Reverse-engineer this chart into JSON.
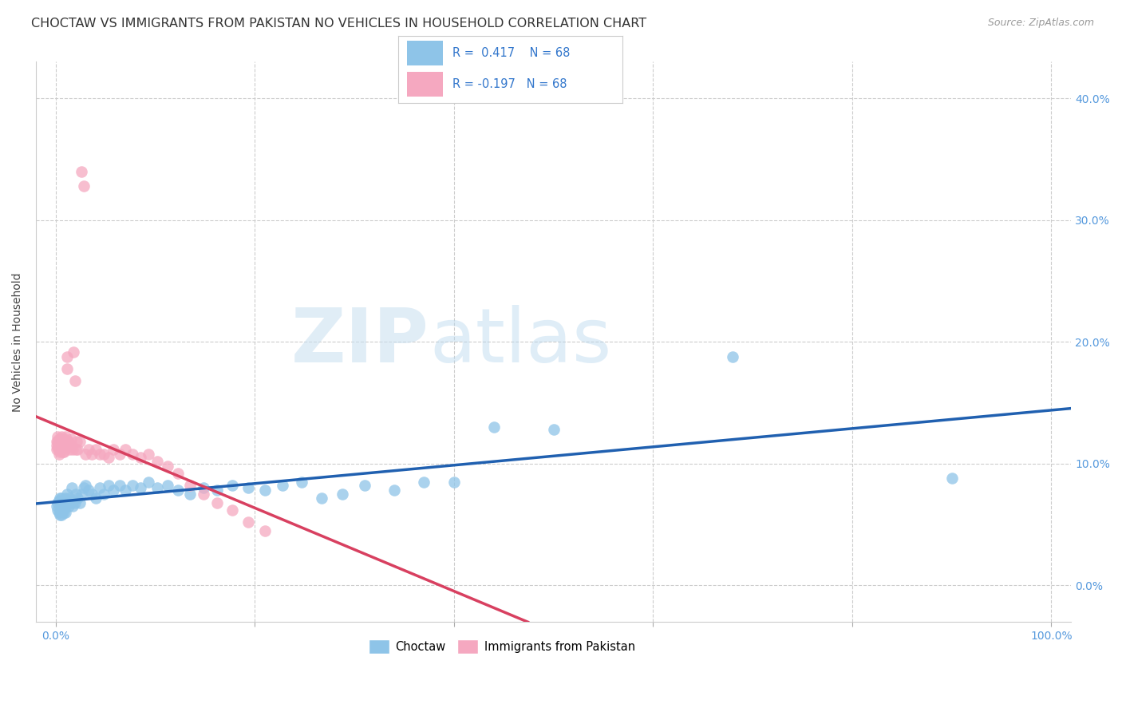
{
  "title": "CHOCTAW VS IMMIGRANTS FROM PAKISTAN NO VEHICLES IN HOUSEHOLD CORRELATION CHART",
  "source": "Source: ZipAtlas.com",
  "ylabel": "No Vehicles in Household",
  "ytick_values": [
    0.0,
    0.1,
    0.2,
    0.3,
    0.4
  ],
  "xtick_positions": [
    0.0,
    0.2,
    0.4,
    0.6,
    0.8,
    1.0
  ],
  "xmin": -0.02,
  "xmax": 1.02,
  "ymin": -0.03,
  "ymax": 0.43,
  "R_choctaw": 0.417,
  "N_choctaw": 68,
  "R_pakistan": -0.197,
  "N_pakistan": 68,
  "choctaw_color": "#8ec4e8",
  "pakistan_color": "#f5a8c0",
  "choctaw_line_color": "#2060b0",
  "pakistan_line_color": "#d84060",
  "legend_choctaw": "Choctaw",
  "legend_pakistan": "Immigrants from Pakistan",
  "watermark_zip": "ZIP",
  "watermark_atlas": "atlas",
  "title_fontsize": 11.5,
  "axis_label_fontsize": 10,
  "tick_fontsize": 10,
  "choctaw_x": [
    0.001,
    0.002,
    0.002,
    0.003,
    0.003,
    0.004,
    0.004,
    0.005,
    0.005,
    0.006,
    0.006,
    0.007,
    0.007,
    0.008,
    0.008,
    0.009,
    0.009,
    0.01,
    0.01,
    0.011,
    0.011,
    0.012,
    0.013,
    0.014,
    0.015,
    0.016,
    0.017,
    0.018,
    0.019,
    0.02,
    0.022,
    0.024,
    0.026,
    0.028,
    0.03,
    0.033,
    0.036,
    0.04,
    0.044,
    0.048,
    0.053,
    0.058,
    0.064,
    0.07,
    0.077,
    0.085,
    0.093,
    0.102,
    0.112,
    0.123,
    0.135,
    0.148,
    0.162,
    0.177,
    0.193,
    0.21,
    0.228,
    0.247,
    0.267,
    0.288,
    0.31,
    0.34,
    0.37,
    0.4,
    0.44,
    0.5,
    0.68,
    0.9
  ],
  "choctaw_y": [
    0.065,
    0.068,
    0.062,
    0.07,
    0.06,
    0.072,
    0.058,
    0.068,
    0.062,
    0.072,
    0.058,
    0.068,
    0.062,
    0.07,
    0.06,
    0.068,
    0.064,
    0.072,
    0.06,
    0.068,
    0.075,
    0.07,
    0.065,
    0.072,
    0.068,
    0.08,
    0.065,
    0.07,
    0.068,
    0.075,
    0.072,
    0.068,
    0.075,
    0.08,
    0.082,
    0.078,
    0.075,
    0.072,
    0.08,
    0.075,
    0.082,
    0.078,
    0.082,
    0.078,
    0.082,
    0.08,
    0.085,
    0.08,
    0.082,
    0.078,
    0.075,
    0.08,
    0.078,
    0.082,
    0.08,
    0.078,
    0.082,
    0.085,
    0.072,
    0.075,
    0.082,
    0.078,
    0.085,
    0.085,
    0.13,
    0.128,
    0.188,
    0.088
  ],
  "pakistan_x": [
    0.001,
    0.001,
    0.001,
    0.002,
    0.002,
    0.002,
    0.003,
    0.003,
    0.003,
    0.003,
    0.004,
    0.004,
    0.004,
    0.005,
    0.005,
    0.005,
    0.006,
    0.006,
    0.006,
    0.007,
    0.007,
    0.007,
    0.008,
    0.008,
    0.008,
    0.009,
    0.009,
    0.01,
    0.01,
    0.011,
    0.011,
    0.012,
    0.012,
    0.013,
    0.014,
    0.015,
    0.016,
    0.017,
    0.018,
    0.019,
    0.02,
    0.021,
    0.022,
    0.024,
    0.026,
    0.028,
    0.03,
    0.033,
    0.036,
    0.04,
    0.044,
    0.048,
    0.053,
    0.058,
    0.064,
    0.07,
    0.077,
    0.085,
    0.093,
    0.102,
    0.112,
    0.123,
    0.135,
    0.148,
    0.162,
    0.177,
    0.193,
    0.21
  ],
  "pakistan_y": [
    0.118,
    0.115,
    0.112,
    0.122,
    0.118,
    0.113,
    0.12,
    0.115,
    0.112,
    0.108,
    0.118,
    0.114,
    0.11,
    0.12,
    0.115,
    0.112,
    0.122,
    0.117,
    0.112,
    0.118,
    0.114,
    0.11,
    0.118,
    0.114,
    0.11,
    0.12,
    0.115,
    0.122,
    0.117,
    0.188,
    0.178,
    0.118,
    0.114,
    0.118,
    0.112,
    0.12,
    0.115,
    0.112,
    0.192,
    0.168,
    0.112,
    0.118,
    0.112,
    0.118,
    0.34,
    0.328,
    0.108,
    0.112,
    0.108,
    0.112,
    0.108,
    0.108,
    0.105,
    0.112,
    0.108,
    0.112,
    0.108,
    0.105,
    0.108,
    0.102,
    0.098,
    0.092,
    0.082,
    0.075,
    0.068,
    0.062,
    0.052,
    0.045
  ]
}
